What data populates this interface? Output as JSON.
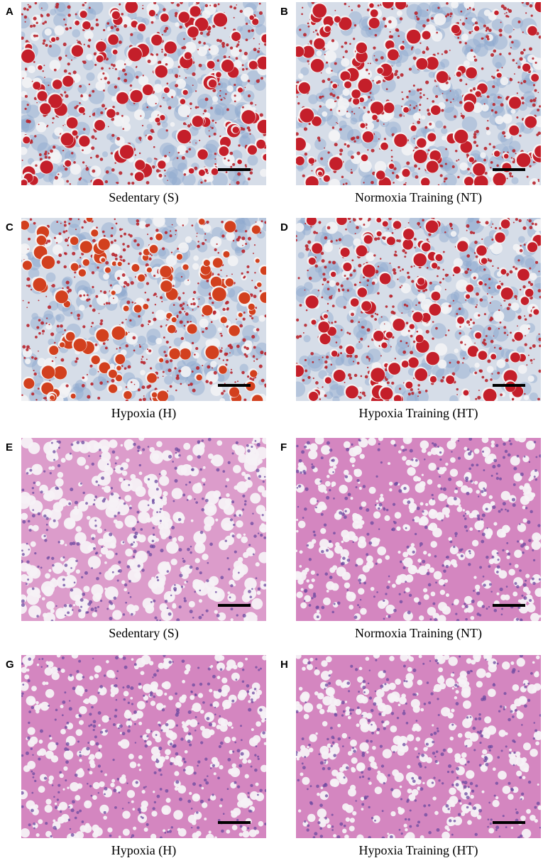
{
  "panels": [
    {
      "label": "A",
      "caption": "Sedentary (S)"
    },
    {
      "label": "B",
      "caption": "Normoxia Training (NT)"
    },
    {
      "label": "C",
      "caption": "Hypoxia (H)"
    },
    {
      "label": "D",
      "caption": "Hypoxia Training (HT)"
    },
    {
      "label": "E",
      "caption": "Sedentary (S)"
    },
    {
      "label": "F",
      "caption": "Normoxia Training (NT)"
    },
    {
      "label": "G",
      "caption": "Hypoxia (H)"
    },
    {
      "label": "H",
      "caption": "Hypoxia Training (HT)"
    }
  ]
}
